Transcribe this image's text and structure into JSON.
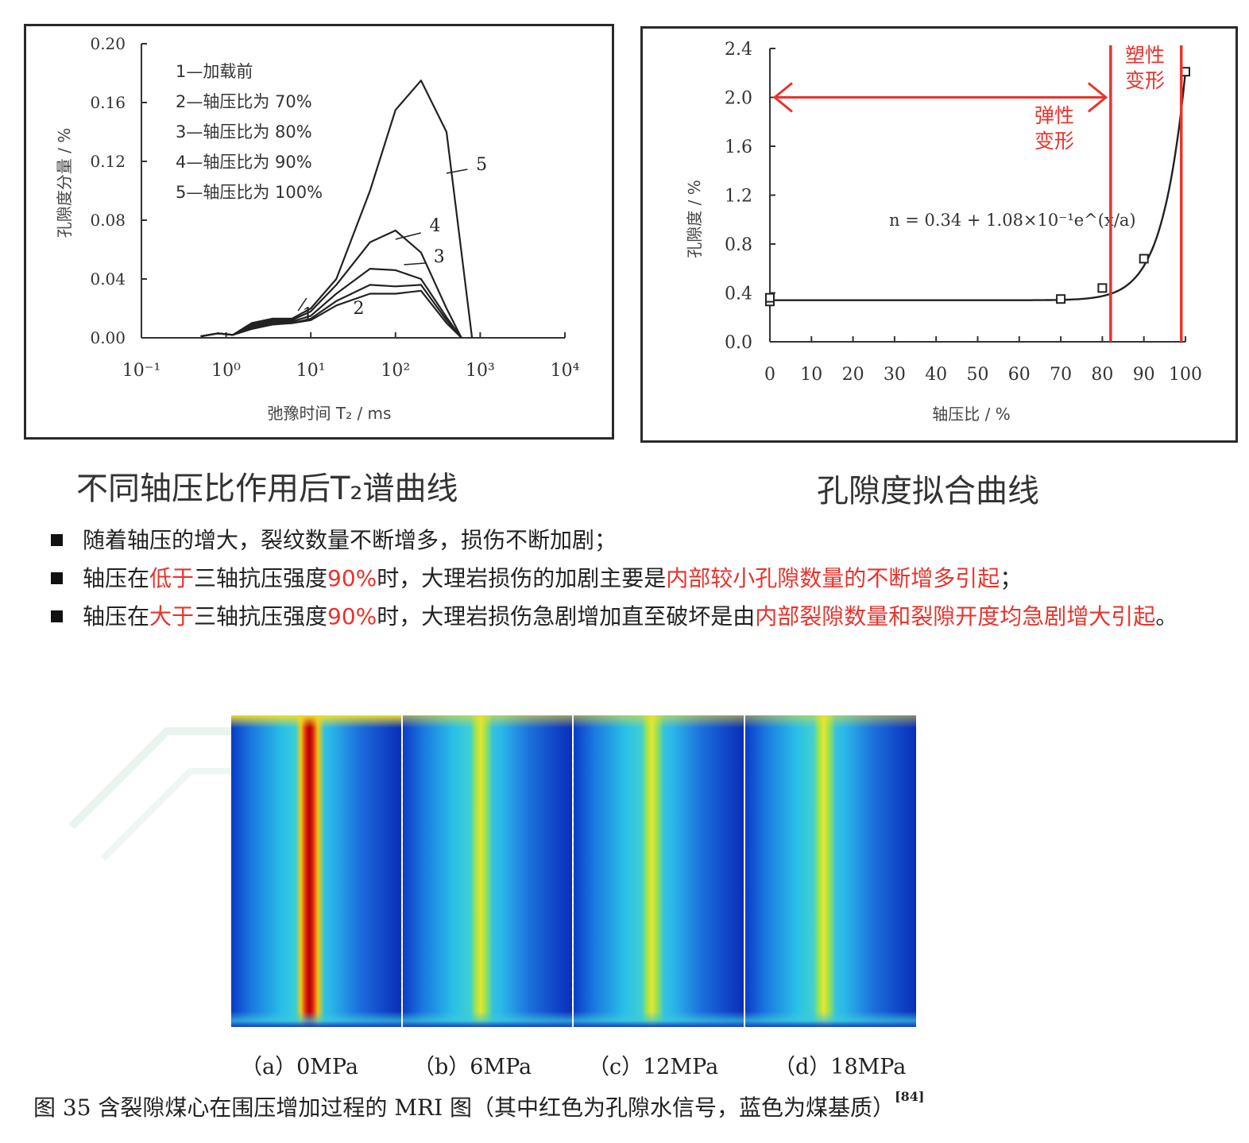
{
  "chart_data": [
    {
      "type": "line",
      "xlabel": "弛豫时间 T₂ / ms",
      "ylabel": "孔隙度分量 / %",
      "xscale": "log",
      "xlim": [
        0.1,
        10000
      ],
      "ylim": [
        0,
        0.2
      ],
      "x_ticks": [
        "10⁻¹",
        "10⁰",
        "10¹",
        "10²",
        "10³",
        "10⁴"
      ],
      "y_ticks": [
        "0.00",
        "0.04",
        "0.08",
        "0.12",
        "0.16",
        "0.20"
      ],
      "legend": [
        "1—加载前",
        "2—轴压比为 70%",
        "3—轴压比为 80%",
        "4—轴压比为 90%",
        "5—轴压比为 100%"
      ],
      "legend_position": "top-left",
      "curve_labels": [
        "1",
        "2",
        "3",
        "4",
        "5"
      ],
      "series": [
        {
          "name": "1",
          "x": [
            0.5,
            0.8,
            1.2,
            2,
            3.5,
            6,
            10,
            20,
            50,
            100,
            200,
            400,
            600
          ],
          "y": [
            0.001,
            0.003,
            0.002,
            0.006,
            0.009,
            0.01,
            0.012,
            0.022,
            0.03,
            0.03,
            0.032,
            0.01,
            0.0
          ]
        },
        {
          "name": "2",
          "x": [
            0.5,
            0.8,
            1.2,
            2,
            3.5,
            6,
            10,
            20,
            50,
            100,
            200,
            400,
            600
          ],
          "y": [
            0.001,
            0.003,
            0.002,
            0.007,
            0.01,
            0.01,
            0.013,
            0.025,
            0.036,
            0.035,
            0.036,
            0.012,
            0.0
          ]
        },
        {
          "name": "3",
          "x": [
            0.5,
            0.8,
            1.2,
            2,
            3.5,
            6,
            10,
            20,
            50,
            100,
            200,
            400,
            600
          ],
          "y": [
            0.001,
            0.003,
            0.002,
            0.008,
            0.011,
            0.011,
            0.015,
            0.03,
            0.047,
            0.046,
            0.04,
            0.014,
            0.0
          ]
        },
        {
          "name": "4",
          "x": [
            0.5,
            0.8,
            1.2,
            2,
            3.5,
            6,
            10,
            20,
            50,
            100,
            200,
            400,
            600
          ],
          "y": [
            0.001,
            0.003,
            0.002,
            0.009,
            0.012,
            0.012,
            0.018,
            0.036,
            0.065,
            0.073,
            0.058,
            0.02,
            0.0
          ]
        },
        {
          "name": "5",
          "x": [
            0.5,
            0.8,
            1.2,
            2,
            3.5,
            6,
            10,
            20,
            50,
            100,
            200,
            400,
            800
          ],
          "y": [
            0.001,
            0.003,
            0.002,
            0.01,
            0.013,
            0.013,
            0.02,
            0.04,
            0.1,
            0.155,
            0.175,
            0.14,
            0.0
          ]
        }
      ]
    },
    {
      "type": "scatter",
      "xlabel": "轴压比 / %",
      "ylabel": "孔隙度 / %",
      "xlim": [
        0,
        100
      ],
      "ylim": [
        0,
        2.4
      ],
      "x_ticks": [
        "0",
        "10",
        "20",
        "30",
        "40",
        "50",
        "60",
        "70",
        "80",
        "90",
        "100"
      ],
      "y_ticks": [
        "0.0",
        "0.4",
        "0.8",
        "1.2",
        "1.6",
        "2.0",
        "2.4"
      ],
      "points": {
        "x": [
          0,
          0,
          70,
          80,
          90,
          100
        ],
        "y": [
          0.33,
          0.36,
          0.35,
          0.44,
          0.68,
          2.21
        ]
      },
      "fit_equation": "n = 0.34 + 1.08×10⁻¹e^(x/a)",
      "annotations": [
        "弹性\n变形",
        "塑性\n变形"
      ],
      "boundary_lines_x": [
        82,
        99
      ],
      "accent_color": "#e8332c"
    }
  ],
  "captions": {
    "t2": "不同轴压比作用后T₂谱曲线",
    "porosity": "孔隙度拟合曲线"
  },
  "bullets": [
    [
      {
        "t": "随着轴压的增大，裂纹数量不断增多，损伤不断加剧；",
        "red": false
      }
    ],
    [
      {
        "t": "轴压在",
        "red": false
      },
      {
        "t": "低于",
        "red": true
      },
      {
        "t": "三轴抗压强度",
        "red": false
      },
      {
        "t": "90%",
        "red": true
      },
      {
        "t": "时，大理岩损伤的加剧主要是",
        "red": false
      },
      {
        "t": "内部较小孔隙数量的不断增多引起",
        "red": true
      },
      {
        "t": "；",
        "red": false
      }
    ],
    [
      {
        "t": "轴压在",
        "red": false
      },
      {
        "t": "大于",
        "red": true
      },
      {
        "t": "三轴抗压强度",
        "red": false
      },
      {
        "t": "90%",
        "red": true
      },
      {
        "t": "时，大理岩损伤急剧增加直至破坏是由",
        "red": false
      },
      {
        "t": "内部裂隙数量和裂隙开度均急剧增大引起",
        "red": true
      },
      {
        "t": "。",
        "red": false
      }
    ]
  ],
  "mri": {
    "labels": [
      "（a）0MPa",
      "（b）6MPa",
      "（c）12MPa",
      "（d）18MPa"
    ],
    "caption": "图 35  含裂隙煤心在围压增加过程的 MRI 图（其中红色为孔隙水信号，蓝色为煤基质）",
    "ref": "[84]"
  }
}
